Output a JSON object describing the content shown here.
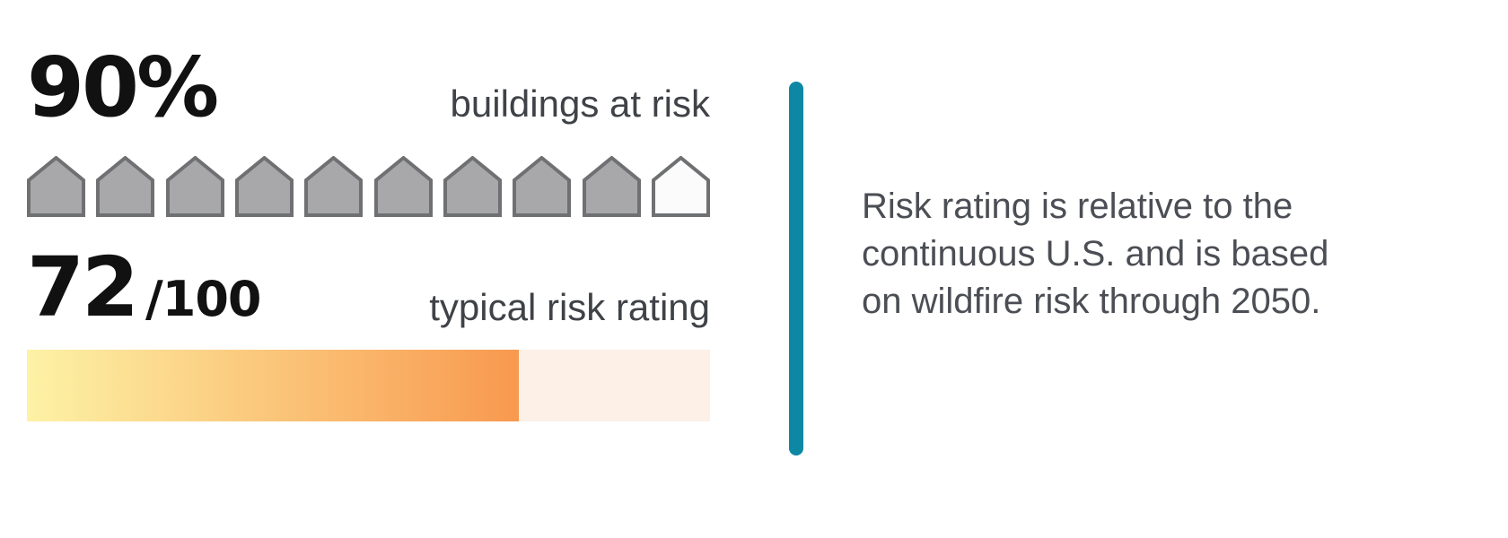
{
  "stats": {
    "buildings": {
      "value": "90%",
      "label": "buildings at risk",
      "icons_total": 10,
      "icons_filled": 9
    },
    "risk_rating": {
      "value": "72",
      "denominator": "/100",
      "label": "typical risk rating",
      "score": 72,
      "max": 100
    }
  },
  "note": {
    "lines": [
      "Risk rating is relative to the",
      "continuous U.S. and is based",
      "on wildfire risk through 2050."
    ]
  },
  "chart_data": [
    {
      "type": "bar",
      "title": "buildings at risk",
      "categories": [
        "buildings at risk"
      ],
      "values": [
        90
      ],
      "unit": "%",
      "ylim": [
        0,
        100
      ],
      "note": "pictogram: 9 of 10 house icons filled"
    },
    {
      "type": "bar",
      "title": "typical risk rating",
      "categories": [
        "typical risk rating"
      ],
      "values": [
        72
      ],
      "ylim": [
        0,
        100
      ],
      "note": "gradient progress bar filled to 72%"
    }
  ],
  "colors": {
    "number_text": "#111111",
    "label_text": "#3f4247",
    "note_text": "#4b4e54",
    "divider": "#0e87a5",
    "house_fill": "#a8a8aa",
    "house_border": "#6f7072",
    "house_empty_fill": "#fbfbfb",
    "bar_gradient_start": "#fdf2a5",
    "bar_gradient_end": "#f8994f",
    "bar_unfilled": "#fcf0e7"
  }
}
